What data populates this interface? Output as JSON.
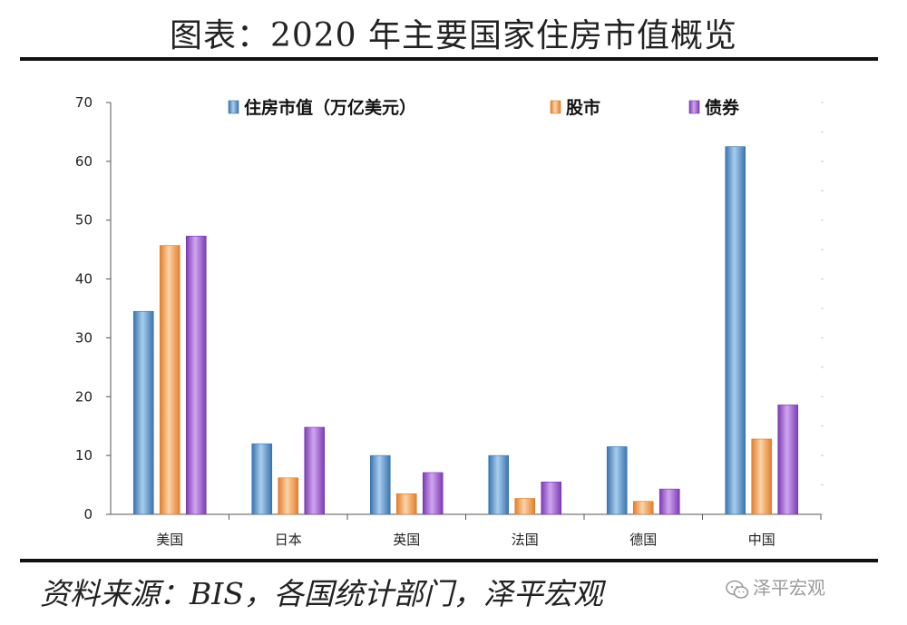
{
  "title": "图表：2020 年主要国家住房市值概览",
  "source": "资料来源：BIS，各国统计部门，泽平宏观",
  "watermark": "泽平宏观",
  "colors": {
    "housing": "#5b9bd5",
    "stock": "#f4a460",
    "bond": "#9b59d0"
  },
  "chart_data": {
    "type": "bar",
    "title": "图表：2020 年主要国家住房市值概览",
    "xlabel": "",
    "ylabel": "",
    "ylim": [
      0,
      70
    ],
    "yticks": [
      0,
      10,
      20,
      30,
      40,
      50,
      60,
      70
    ],
    "categories": [
      "美国",
      "日本",
      "英国",
      "法国",
      "德国",
      "中国"
    ],
    "legend_position": "top",
    "grid": false,
    "series": [
      {
        "name": "住房市值（万亿美元）",
        "values": [
          34.5,
          12.0,
          10.0,
          10.0,
          11.5,
          62.5
        ]
      },
      {
        "name": "股市",
        "values": [
          45.7,
          6.2,
          3.5,
          2.7,
          2.2,
          12.8
        ]
      },
      {
        "name": "债券",
        "values": [
          47.3,
          14.8,
          7.1,
          5.5,
          4.3,
          18.6
        ]
      }
    ]
  }
}
